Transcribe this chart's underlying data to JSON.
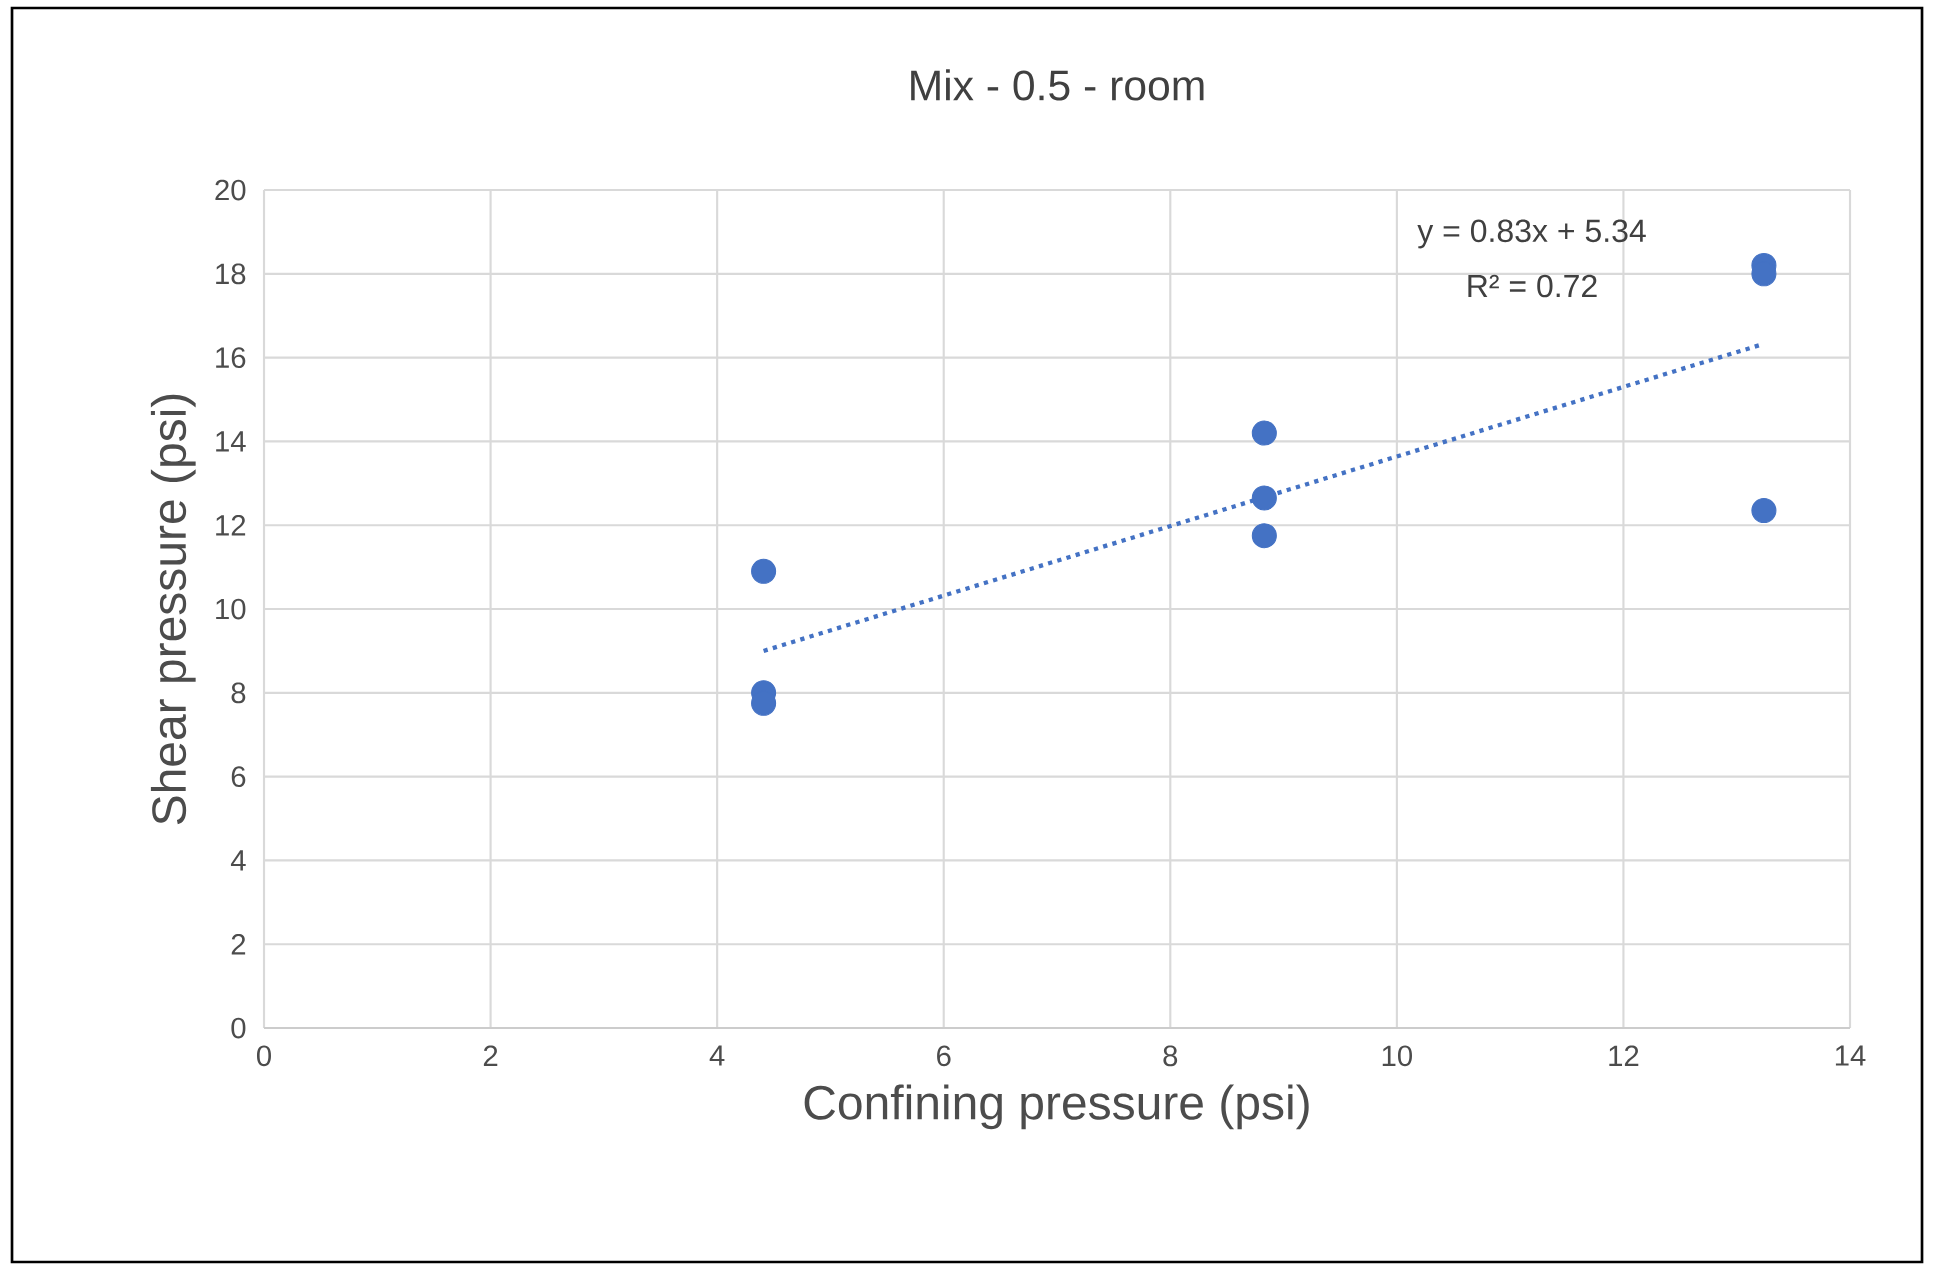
{
  "chart_data": {
    "type": "scatter",
    "title": "Mix - 0.5 - room",
    "xlabel": "Confining pressure (psi)",
    "ylabel": "Shear pressure (psi)",
    "xlim": [
      0,
      14
    ],
    "xticks": [
      0,
      2,
      4,
      6,
      8,
      10,
      12,
      14
    ],
    "ylim": [
      0,
      20
    ],
    "yticks": [
      0,
      2,
      4,
      6,
      8,
      10,
      12,
      14,
      16,
      18,
      20
    ],
    "grid": true,
    "series": [
      {
        "marker": "circle",
        "color": "#4472c4",
        "x": [
          4.41,
          4.41,
          4.41,
          8.83,
          8.83,
          8.83,
          13.24,
          13.24,
          13.24
        ],
        "values": [
          10.9,
          8.0,
          7.75,
          14.2,
          12.65,
          11.75,
          18.2,
          18.0,
          12.35
        ]
      },
      {
        "type": "line",
        "color": "#4472c4",
        "line_style": "dotted",
        "marker": "none",
        "x": [
          4.41,
          13.24
        ],
        "values": [
          9.0,
          16.33
        ]
      }
    ],
    "annotations": [
      "y = 0.83x + 5.34",
      "R² = 0.72"
    ]
  }
}
